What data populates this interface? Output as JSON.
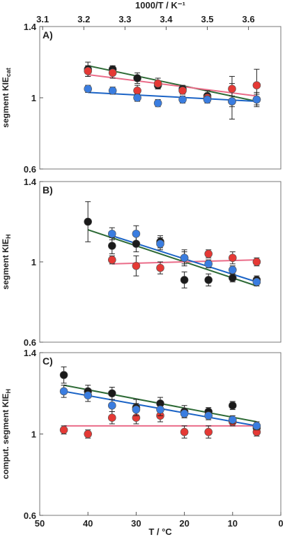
{
  "chart_data": [
    {
      "type": "scatter",
      "panel_label": "A)",
      "ylabel": "segment KIE",
      "ylabel_sub": "cat",
      "ylim": [
        0.6,
        1.4
      ],
      "y_ticks": [
        "0.6",
        "1",
        "1.4"
      ],
      "x_axis_top": {
        "label": "1000/T / K⁻¹",
        "range": [
          3.1,
          3.65
        ],
        "ticks": [
          "3.1",
          "3.2",
          "3.3",
          "3.4",
          "3.5",
          "3.6"
        ]
      },
      "x_unit": "1000/T (K^-1)",
      "series": [
        {
          "color": "#1a1a1a",
          "line_color": "#2d6a35",
          "points": [
            [
              3.21,
              1.16,
              0.04
            ],
            [
              3.27,
              1.16,
              0.02
            ],
            [
              3.33,
              1.11,
              0.03
            ],
            [
              3.38,
              1.07,
              0.02
            ],
            [
              3.44,
              1.05,
              0.02
            ],
            [
              3.5,
              1.01,
              0.03
            ],
            [
              3.56,
              0.98,
              0.1
            ],
            [
              3.62,
              0.99,
              0.04
            ]
          ],
          "fit": [
            [
              3.21,
              1.18
            ],
            [
              3.62,
              0.98
            ]
          ]
        },
        {
          "color": "#e53935",
          "line_color": "#ea6b88",
          "points": [
            [
              3.21,
              1.15,
              0.03
            ],
            [
              3.27,
              1.14,
              0.03
            ],
            [
              3.33,
              1.04,
              0.03
            ],
            [
              3.38,
              1.08,
              0.03
            ],
            [
              3.44,
              1.04,
              0.02
            ],
            [
              3.5,
              1.0,
              0.02
            ],
            [
              3.56,
              1.05,
              0.07
            ],
            [
              3.62,
              1.07,
              0.09
            ]
          ],
          "fit": [
            [
              3.21,
              1.13
            ],
            [
              3.62,
              1.01
            ]
          ]
        },
        {
          "color": "#3a7de0",
          "line_color": "#1a63c6",
          "points": [
            [
              3.21,
              1.05,
              0.02
            ],
            [
              3.27,
              1.04,
              0.02
            ],
            [
              3.33,
              1.0,
              0.02
            ],
            [
              3.38,
              0.97,
              0.02
            ],
            [
              3.44,
              0.99,
              0.02
            ],
            [
              3.5,
              0.99,
              0.02
            ],
            [
              3.56,
              0.98,
              0.03
            ],
            [
              3.62,
              0.99,
              0.03
            ]
          ],
          "fit": [
            [
              3.21,
              1.03
            ],
            [
              3.62,
              0.98
            ]
          ]
        }
      ]
    },
    {
      "type": "scatter",
      "panel_label": "B)",
      "ylabel": "segment KIE",
      "ylabel_sub": "H",
      "ylim": [
        0.6,
        1.4
      ],
      "y_ticks": [
        "0.6",
        "1",
        "1.4"
      ],
      "x_unit": "T (°C)",
      "series": [
        {
          "color": "#1a1a1a",
          "line_color": "#2d6a35",
          "points": [
            [
              40,
              1.2,
              0.1
            ],
            [
              35,
              1.08,
              0.04
            ],
            [
              30,
              1.09,
              0.04
            ],
            [
              25,
              1.1,
              0.03
            ],
            [
              20,
              0.91,
              0.04
            ],
            [
              15,
              0.91,
              0.03
            ],
            [
              10,
              0.92,
              0.02
            ],
            [
              5,
              0.91,
              0.02
            ]
          ],
          "fit": [
            [
              40,
              1.16
            ],
            [
              5,
              0.88
            ]
          ]
        },
        {
          "color": "#e53935",
          "line_color": "#ea6b88",
          "points": [
            [
              35,
              1.01,
              0.02
            ],
            [
              30,
              0.98,
              0.05
            ],
            [
              25,
              0.97,
              0.03
            ],
            [
              20,
              1.02,
              0.04
            ],
            [
              15,
              1.04,
              0.02
            ],
            [
              10,
              1.02,
              0.03
            ],
            [
              5,
              1.0,
              0.02
            ]
          ],
          "fit": [
            [
              35,
              0.99
            ],
            [
              5,
              1.01
            ]
          ]
        },
        {
          "color": "#3a7de0",
          "line_color": "#1a63c6",
          "points": [
            [
              35,
              1.14,
              0.03
            ],
            [
              30,
              1.14,
              0.04
            ],
            [
              25,
              1.09,
              0.03
            ],
            [
              20,
              1.02,
              0.03
            ],
            [
              15,
              0.99,
              0.02
            ],
            [
              10,
              0.96,
              0.02
            ],
            [
              5,
              0.9,
              0.02
            ]
          ],
          "fit": [
            [
              35,
              1.13
            ],
            [
              5,
              0.9
            ]
          ]
        }
      ]
    },
    {
      "type": "scatter",
      "panel_label": "C)",
      "xlabel": "T / °C",
      "ylabel": "comput. segment KIE",
      "ylabel_sub": "H",
      "ylim": [
        0.6,
        1.4
      ],
      "y_ticks": [
        "0.6",
        "1",
        "1.4"
      ],
      "xlim": [
        50,
        0
      ],
      "x_ticks": [
        "50",
        "40",
        "30",
        "20",
        "10",
        "0"
      ],
      "series": [
        {
          "color": "#1a1a1a",
          "line_color": "#2d6a35",
          "points": [
            [
              45,
              1.29,
              0.04
            ],
            [
              40,
              1.21,
              0.03
            ],
            [
              35,
              1.2,
              0.03
            ],
            [
              30,
              1.13,
              0.04
            ],
            [
              25,
              1.15,
              0.03
            ],
            [
              20,
              1.11,
              0.03
            ],
            [
              15,
              1.11,
              0.02
            ],
            [
              10,
              1.14,
              0.02
            ],
            [
              5,
              1.03,
              0.03
            ]
          ],
          "fit": [
            [
              45,
              1.24
            ],
            [
              5,
              1.06
            ]
          ]
        },
        {
          "color": "#e53935",
          "line_color": "#ea6b88",
          "points": [
            [
              45,
              1.02,
              0.02
            ],
            [
              40,
              1.0,
              0.02
            ],
            [
              35,
              1.08,
              0.03
            ],
            [
              30,
              1.08,
              0.03
            ],
            [
              25,
              1.09,
              0.03
            ],
            [
              20,
              1.01,
              0.03
            ],
            [
              15,
              1.01,
              0.03
            ],
            [
              10,
              1.06,
              0.02
            ],
            [
              5,
              1.01,
              0.02
            ]
          ],
          "fit": [
            [
              45,
              1.04
            ],
            [
              5,
              1.04
            ]
          ]
        },
        {
          "color": "#3a7de0",
          "line_color": "#1a63c6",
          "points": [
            [
              45,
              1.21,
              0.03
            ],
            [
              40,
              1.19,
              0.03
            ],
            [
              35,
              1.14,
              0.03
            ],
            [
              30,
              1.12,
              0.03
            ],
            [
              25,
              1.12,
              0.03
            ],
            [
              20,
              1.1,
              0.02
            ],
            [
              15,
              1.09,
              0.02
            ],
            [
              10,
              1.07,
              0.02
            ],
            [
              5,
              1.04,
              0.02
            ]
          ],
          "fit": [
            [
              45,
              1.21
            ],
            [
              5,
              1.04
            ]
          ]
        }
      ]
    }
  ]
}
